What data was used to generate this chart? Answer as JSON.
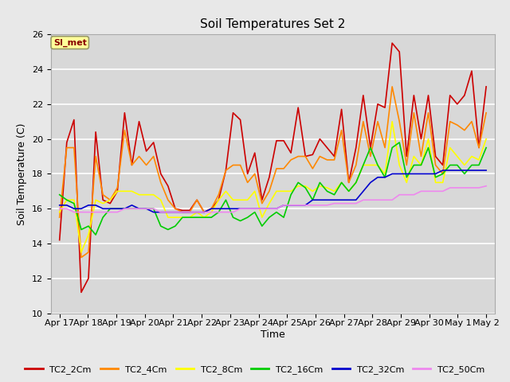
{
  "title": "Soil Temperatures Set 2",
  "xlabel": "Time",
  "ylabel": "Soil Temperature (C)",
  "ylim": [
    10,
    26
  ],
  "background_color": "#e8e8e8",
  "plot_bg_color": "#d8d8d8",
  "annotation_text": "SI_met",
  "annotation_bg": "#ffff99",
  "annotation_border": "#999966",
  "annotation_text_color": "#880000",
  "xtick_labels": [
    "Apr 17",
    "Apr 18",
    "Apr 19",
    "Apr 20",
    "Apr 21",
    "Apr 22",
    "Apr 23",
    "Apr 24",
    "Apr 25",
    "Apr 26",
    "Apr 27",
    "Apr 28",
    "Apr 29",
    "Apr 30",
    "May 1",
    "May 2"
  ],
  "series": {
    "TC2_2Cm": {
      "color": "#cc0000",
      "data": [
        14.2,
        19.8,
        21.1,
        11.2,
        12.0,
        20.4,
        16.5,
        16.3,
        17.0,
        21.5,
        18.5,
        21.0,
        19.3,
        19.8,
        18.0,
        17.3,
        16.0,
        15.9,
        15.9,
        16.5,
        15.8,
        16.0,
        16.5,
        18.2,
        21.5,
        21.1,
        18.0,
        19.2,
        16.5,
        17.8,
        19.9,
        19.9,
        19.2,
        21.8,
        19.0,
        19.1,
        20.0,
        19.5,
        19.0,
        21.7,
        17.5,
        19.5,
        22.5,
        19.5,
        22.0,
        21.8,
        25.5,
        25.0,
        19.0,
        22.5,
        20.0,
        22.5,
        19.0,
        18.5,
        22.5,
        22.0,
        22.5,
        23.9,
        19.5,
        23.0
      ]
    },
    "TC2_4Cm": {
      "color": "#ff8800",
      "data": [
        15.5,
        19.5,
        19.5,
        13.2,
        13.5,
        19.0,
        16.8,
        16.5,
        17.2,
        20.5,
        18.5,
        19.0,
        18.5,
        19.0,
        17.5,
        16.5,
        16.0,
        15.8,
        15.8,
        16.5,
        15.8,
        16.0,
        16.8,
        18.2,
        18.5,
        18.5,
        17.5,
        18.0,
        16.3,
        17.0,
        18.3,
        18.3,
        18.8,
        19.0,
        19.0,
        18.3,
        19.0,
        18.8,
        18.8,
        20.5,
        17.5,
        18.5,
        21.0,
        19.0,
        21.0,
        19.5,
        23.0,
        21.0,
        18.5,
        21.5,
        19.0,
        21.5,
        18.5,
        18.0,
        21.0,
        20.8,
        20.5,
        21.0,
        19.5,
        21.5
      ]
    },
    "TC2_8Cm": {
      "color": "#ffff00",
      "data": [
        15.8,
        16.5,
        16.5,
        13.5,
        14.5,
        16.5,
        16.3,
        16.5,
        17.0,
        17.0,
        17.0,
        16.8,
        16.8,
        16.8,
        16.5,
        15.5,
        15.5,
        15.5,
        15.5,
        15.8,
        15.5,
        15.8,
        16.5,
        17.0,
        16.5,
        16.5,
        16.5,
        17.0,
        15.5,
        16.3,
        17.0,
        17.0,
        17.0,
        17.3,
        17.3,
        17.0,
        17.3,
        17.2,
        17.0,
        17.5,
        17.0,
        17.5,
        18.5,
        18.5,
        18.5,
        18.0,
        21.0,
        18.5,
        17.5,
        19.0,
        18.5,
        20.0,
        17.5,
        17.5,
        19.5,
        19.0,
        18.5,
        19.0,
        18.8,
        20.0
      ]
    },
    "TC2_16Cm": {
      "color": "#00cc00",
      "data": [
        16.8,
        16.5,
        16.3,
        14.8,
        15.0,
        14.5,
        15.5,
        16.0,
        16.0,
        16.0,
        16.0,
        16.0,
        16.0,
        16.0,
        15.0,
        14.8,
        15.0,
        15.5,
        15.5,
        15.5,
        15.5,
        15.5,
        15.8,
        16.5,
        15.5,
        15.3,
        15.5,
        15.8,
        15.0,
        15.5,
        15.8,
        15.5,
        16.8,
        17.5,
        17.2,
        16.5,
        17.5,
        17.0,
        16.8,
        17.5,
        17.0,
        17.5,
        18.5,
        19.5,
        18.5,
        17.8,
        19.5,
        19.8,
        17.8,
        18.5,
        18.5,
        19.5,
        17.8,
        18.0,
        18.5,
        18.5,
        18.0,
        18.5,
        18.5,
        19.5
      ]
    },
    "TC2_32Cm": {
      "color": "#0000cc",
      "data": [
        16.2,
        16.2,
        16.0,
        16.0,
        16.2,
        16.2,
        16.0,
        16.0,
        16.0,
        16.0,
        16.2,
        16.0,
        16.0,
        15.8,
        15.8,
        15.8,
        15.8,
        15.8,
        15.8,
        15.8,
        15.8,
        16.0,
        16.0,
        16.0,
        16.0,
        16.0,
        16.0,
        16.0,
        16.0,
        16.0,
        16.0,
        16.2,
        16.2,
        16.2,
        16.2,
        16.5,
        16.5,
        16.5,
        16.5,
        16.5,
        16.5,
        16.5,
        17.0,
        17.5,
        17.8,
        17.8,
        18.0,
        18.0,
        18.0,
        18.0,
        18.0,
        18.0,
        18.0,
        18.2,
        18.2,
        18.2,
        18.2,
        18.2,
        18.2,
        18.2
      ]
    },
    "TC2_50Cm": {
      "color": "#ee88ee",
      "data": [
        16.0,
        16.0,
        15.8,
        15.8,
        15.8,
        15.8,
        15.8,
        15.8,
        15.8,
        16.0,
        16.0,
        16.0,
        16.0,
        16.0,
        15.8,
        15.8,
        15.8,
        15.8,
        15.8,
        15.8,
        15.8,
        15.8,
        15.8,
        15.8,
        15.8,
        16.0,
        16.0,
        16.0,
        16.0,
        16.0,
        16.0,
        16.2,
        16.2,
        16.2,
        16.2,
        16.2,
        16.2,
        16.2,
        16.3,
        16.3,
        16.3,
        16.3,
        16.5,
        16.5,
        16.5,
        16.5,
        16.5,
        16.8,
        16.8,
        16.8,
        17.0,
        17.0,
        17.0,
        17.0,
        17.2,
        17.2,
        17.2,
        17.2,
        17.2,
        17.3
      ]
    }
  }
}
